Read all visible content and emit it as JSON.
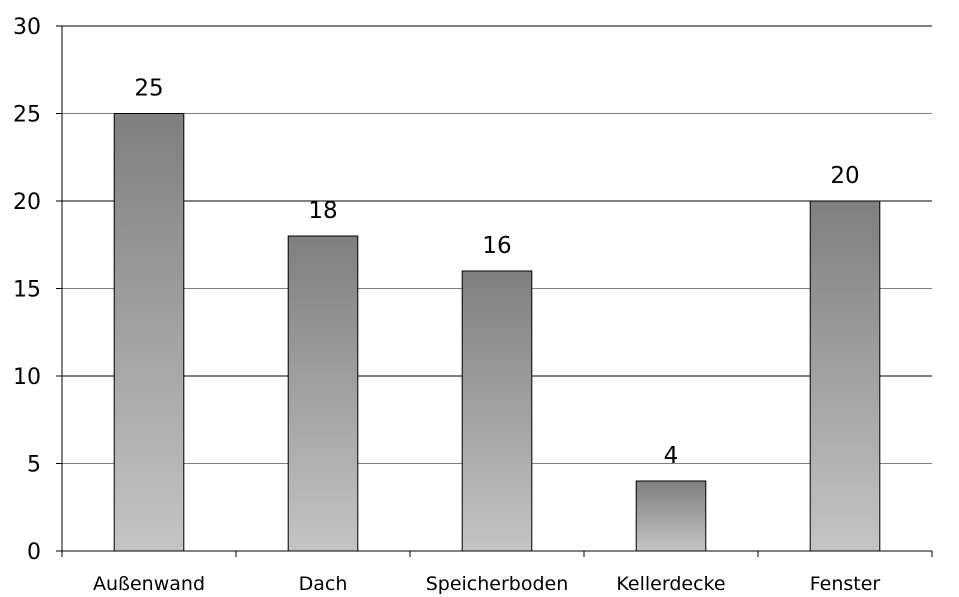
{
  "chart_data": {
    "type": "bar",
    "categories": [
      "Außenwand",
      "Dach",
      "Speicherboden",
      "Kellerdecke",
      "Fenster"
    ],
    "values": [
      25,
      18,
      16,
      4,
      20
    ],
    "ylim": [
      0,
      30
    ],
    "yticks": [
      0,
      5,
      10,
      15,
      20,
      25,
      30
    ],
    "grid": true,
    "legend": "none",
    "data_labels": true,
    "colors": {
      "bar_top": "#7f7f7f",
      "bar_bottom": "#c4c4c4",
      "bar_stroke": "#000000",
      "grid_dark": "#000000",
      "grid_light": "#808080"
    }
  }
}
